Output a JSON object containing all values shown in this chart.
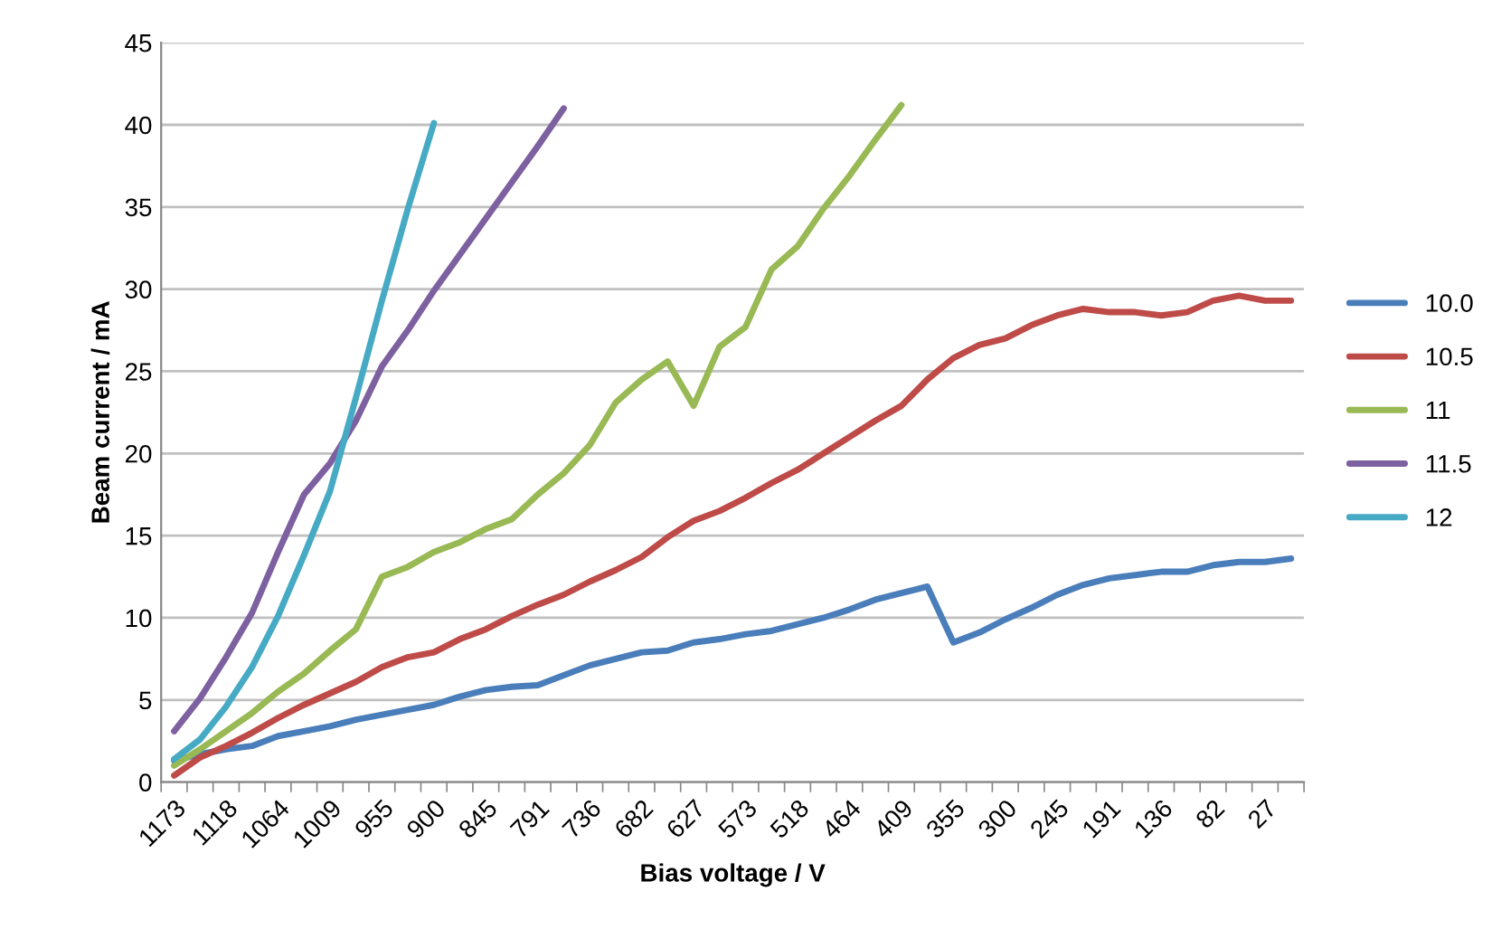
{
  "chart_data": {
    "type": "line",
    "xlabel": "Bias voltage / V",
    "ylabel": "Beam current / mA",
    "categories": [
      "1173",
      null,
      "1118",
      null,
      "1064",
      null,
      "1009",
      null,
      "955",
      null,
      "900",
      null,
      "845",
      null,
      "791",
      null,
      "736",
      null,
      "682",
      null,
      "627",
      null,
      "573",
      null,
      "518",
      null,
      "464",
      null,
      "409",
      null,
      "355",
      null,
      "300",
      null,
      "245",
      null,
      "191",
      null,
      "136",
      null,
      "82",
      null,
      "27",
      null
    ],
    "series": [
      {
        "name": "10.0",
        "color": "#4a7ebb",
        "values": [
          1.3,
          1.7,
          2.0,
          2.2,
          2.8,
          3.1,
          3.4,
          3.8,
          4.1,
          4.4,
          4.7,
          5.2,
          5.6,
          5.8,
          5.9,
          6.5,
          7.1,
          7.5,
          7.9,
          8.0,
          8.5,
          8.7,
          9.0,
          9.2,
          9.6,
          10.0,
          10.5,
          11.1,
          11.5,
          11.9,
          8.5,
          9.1,
          9.9,
          10.6,
          11.4,
          12.0,
          12.4,
          12.6,
          12.8,
          12.8,
          13.2,
          13.4,
          13.4,
          13.6
        ]
      },
      {
        "name": "10.5",
        "color": "#be4b48",
        "values": [
          0.4,
          1.5,
          2.2,
          3.0,
          3.9,
          4.7,
          5.4,
          6.1,
          7.0,
          7.6,
          7.9,
          8.7,
          9.3,
          10.1,
          10.8,
          11.4,
          12.2,
          12.9,
          13.7,
          14.9,
          15.9,
          16.5,
          17.3,
          18.2,
          19.0,
          20.0,
          21.0,
          22.0,
          22.9,
          24.5,
          25.8,
          26.6,
          27.0,
          27.8,
          28.4,
          28.8,
          28.6,
          28.6,
          28.4,
          28.6,
          29.3,
          29.6,
          29.3,
          29.3
        ]
      },
      {
        "name": "11",
        "color": "#98b954",
        "values": [
          1.0,
          2.0,
          3.1,
          4.2,
          5.5,
          6.6,
          8.0,
          9.3,
          12.5,
          13.1,
          14.0,
          14.6,
          15.4,
          16.0,
          17.5,
          18.8,
          20.5,
          23.1,
          24.5,
          25.6,
          22.9,
          26.5,
          27.7,
          31.2,
          32.6,
          34.9,
          36.9,
          39.1,
          41.2,
          null,
          null,
          null,
          null,
          null,
          null,
          null,
          null,
          null,
          null,
          null,
          null,
          null,
          null,
          null
        ]
      },
      {
        "name": "11.5",
        "color": "#7d60a0",
        "values": [
          3.1,
          5.1,
          7.6,
          10.3,
          14.0,
          17.5,
          19.4,
          22.0,
          25.3,
          27.5,
          29.9,
          32.1,
          34.3,
          36.5,
          38.7,
          41.0,
          null,
          null,
          null,
          null,
          null,
          null,
          null,
          null,
          null,
          null,
          null,
          null,
          null,
          null,
          null,
          null,
          null,
          null,
          null,
          null,
          null,
          null,
          null,
          null,
          null,
          null,
          null,
          null
        ]
      },
      {
        "name": "12",
        "color": "#46aac5",
        "values": [
          1.4,
          2.6,
          4.6,
          7.0,
          10.1,
          13.8,
          17.7,
          23.4,
          29.3,
          34.9,
          40.1,
          null,
          null,
          null,
          null,
          null,
          null,
          null,
          null,
          null,
          null,
          null,
          null,
          null,
          null,
          null,
          null,
          null,
          null,
          null,
          null,
          null,
          null,
          null,
          null,
          null,
          null,
          null,
          null,
          null,
          null,
          null,
          null,
          null
        ]
      }
    ],
    "ylim": [
      0,
      45
    ],
    "yticks": [
      0,
      5,
      10,
      15,
      20,
      25,
      30,
      35,
      40,
      45
    ],
    "grid": "y",
    "legend": "right",
    "marker": "none",
    "line_style": "solid"
  }
}
